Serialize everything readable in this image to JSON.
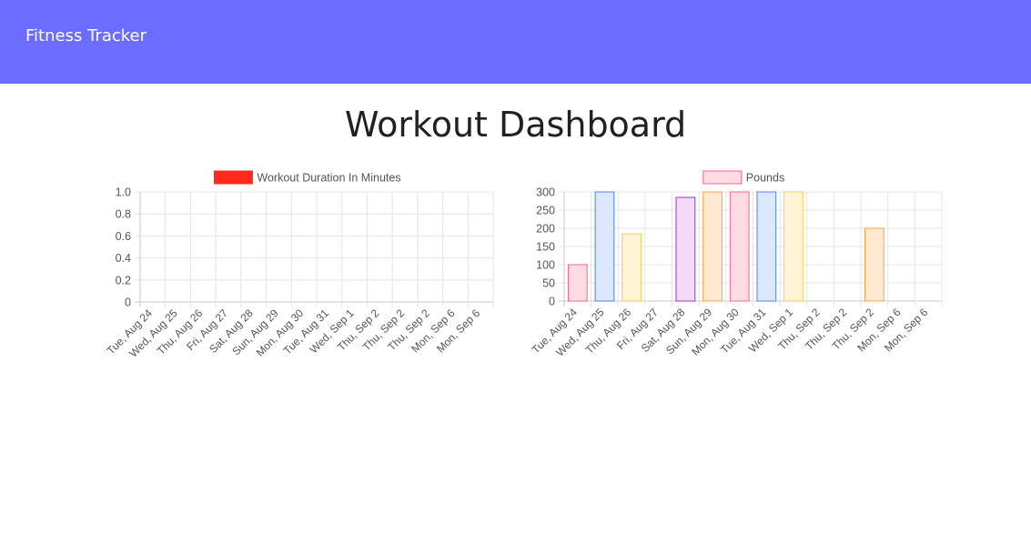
{
  "navbar": {
    "brand": "Fitness Tracker",
    "color": "#6c6cff"
  },
  "page": {
    "title": "Workout Dashboard"
  },
  "chart_data": [
    {
      "type": "bar",
      "categories": [
        "Tue, Aug 24",
        "Wed, Aug 25",
        "Thu, Aug 26",
        "Fri, Aug 27",
        "Sat, Aug 28",
        "Sun, Aug 29",
        "Mon, Aug 30",
        "Tue, Aug 31",
        "Wed, Sep 1",
        "Thu, Sep 2",
        "Thu, Sep 2",
        "Thu, Sep 2",
        "Mon, Sep 6",
        "Mon, Sep 6"
      ],
      "series": [
        {
          "name": "Workout Duration In Minutes",
          "values": [
            0,
            0,
            0,
            0,
            0,
            0,
            0,
            0,
            0,
            0,
            0,
            0,
            0,
            0
          ],
          "color": "#ff2a1e"
        }
      ],
      "yticks": [
        0,
        0.2,
        0.4,
        0.6,
        0.8,
        1.0
      ],
      "ytick_labels": [
        "0",
        "0.2",
        "0.4",
        "0.6",
        "0.8",
        "1.0"
      ],
      "ylim": [
        0,
        1
      ],
      "grid": true,
      "legend": "top-center"
    },
    {
      "type": "bar",
      "categories": [
        "Tue, Aug 24",
        "Wed, Aug 25",
        "Thu, Aug 26",
        "Fri, Aug 27",
        "Sat, Aug 28",
        "Sun, Aug 29",
        "Mon, Aug 30",
        "Tue, Aug 31",
        "Wed, Sep 1",
        "Thu, Sep 2",
        "Thu, Sep 2",
        "Thu, Sep 2",
        "Mon, Sep 6",
        "Mon, Sep 6"
      ],
      "series": [
        {
          "name": "Pounds",
          "values": [
            100,
            300,
            185,
            0,
            285,
            300,
            300,
            300,
            300,
            0,
            0,
            200,
            0,
            0
          ]
        }
      ],
      "bar_fills": [
        "#ffdce3",
        "#dbe7fb",
        "#fff4d6",
        "#ffffff",
        "#f4d9fb",
        "#ffe9d1",
        "#ffdce3",
        "#dbe7fb",
        "#fff4d6",
        "#ffffff",
        "#ffffff",
        "#ffe9d1",
        "#ffffff",
        "#ffffff"
      ],
      "bar_strokes": [
        "#ff6384",
        "#4f86e8",
        "#f5cd5a",
        "#ffffff",
        "#9b32d6",
        "#ffa341",
        "#ff6384",
        "#4f86e8",
        "#f5cd5a",
        "#ffffff",
        "#ffffff",
        "#ffa341",
        "#ffffff",
        "#ffffff"
      ],
      "legend_fill": "#ffdce3",
      "legend_stroke": "#ff6384",
      "yticks": [
        0,
        50,
        100,
        150,
        200,
        250,
        300
      ],
      "ytick_labels": [
        "0",
        "50",
        "100",
        "150",
        "200",
        "250",
        "300"
      ],
      "ylim": [
        0,
        300
      ],
      "grid": true,
      "legend": "top-center"
    }
  ]
}
